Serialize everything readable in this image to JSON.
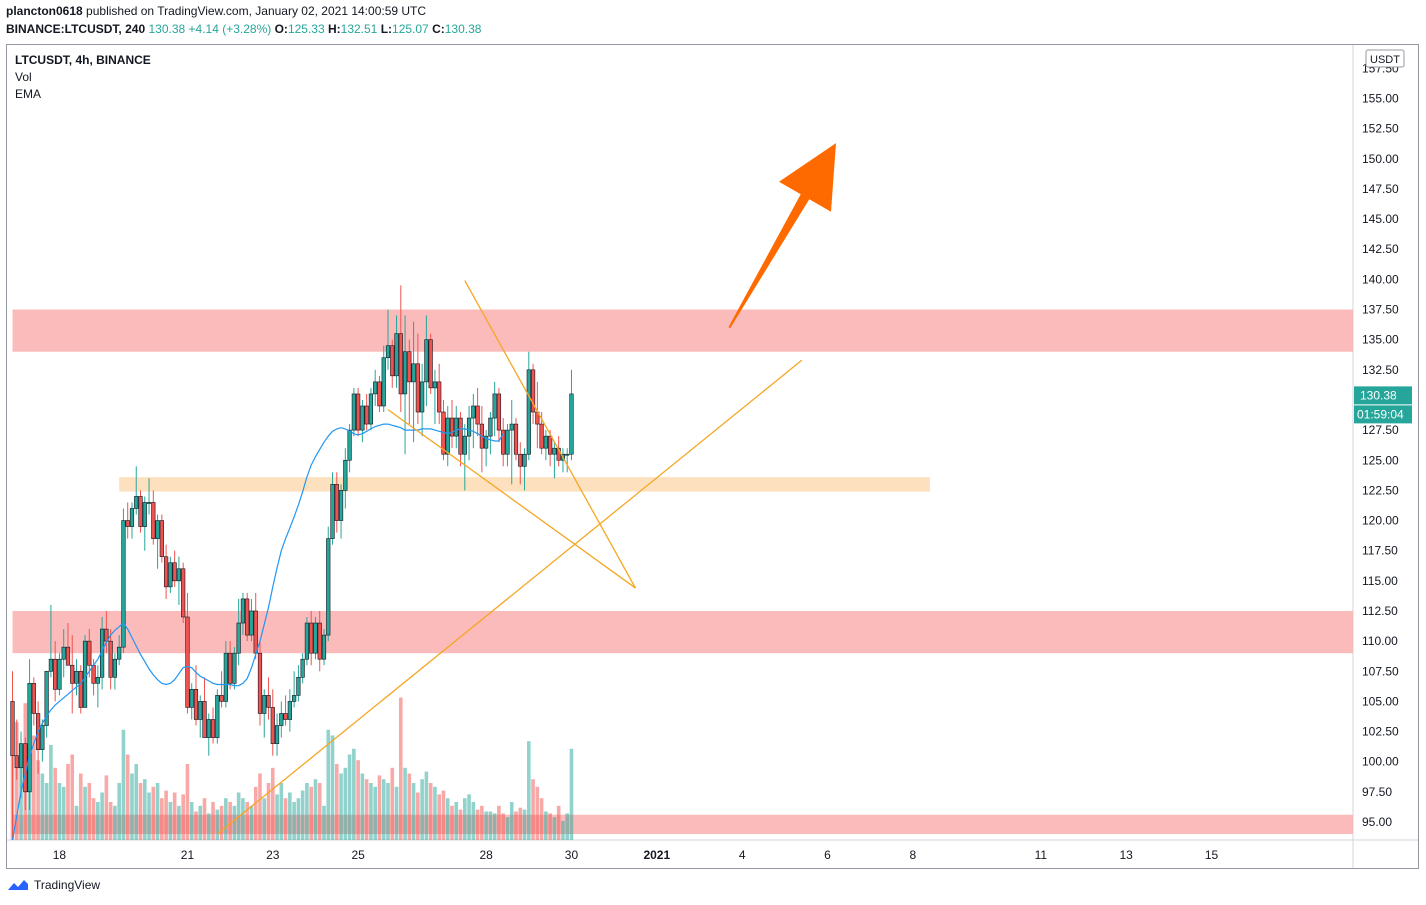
{
  "header": {
    "author": "plancton0618",
    "published": "published on TradingView.com, January 02, 2021 14:00:59 UTC",
    "symbol": "BINANCE:LTCUSDT, 240",
    "last": "130.38",
    "change": "+4.14 (+3.28%)",
    "o_label": "O:",
    "o_value": "125.33",
    "h_label": "H:",
    "h_value": "132.51",
    "l_label": "L:",
    "l_value": "125.07",
    "c_label": "C:",
    "c_value": "130.38"
  },
  "legend": {
    "title": "LTCUSDT, 4h, BINANCE",
    "vol": "Vol",
    "ema": "EMA"
  },
  "price_axis": {
    "currency": "USDT",
    "last_price": "130.38",
    "countdown": "01:59:04"
  },
  "footer": {
    "brand": "TradingView"
  },
  "colors": {
    "up": "#26a69a",
    "down": "#ef5350",
    "ema": "#2196f3",
    "resistance_zone": "#fbb4b4",
    "support_zone": "#fddcb4",
    "trendline": "#f5a623",
    "arrow": "#ff6a00"
  },
  "chart_data": {
    "type": "candlestick",
    "ylim": [
      93.5,
      158.5
    ],
    "yticks": [
      "95.00",
      "97.50",
      "100.00",
      "102.50",
      "105.00",
      "107.50",
      "110.00",
      "112.50",
      "115.00",
      "117.50",
      "120.00",
      "122.50",
      "125.00",
      "127.50",
      "130.00",
      "132.50",
      "135.00",
      "137.50",
      "140.00",
      "142.50",
      "145.00",
      "147.50",
      "150.00",
      "152.50",
      "155.00",
      "157.50"
    ],
    "xticks": [
      {
        "label": "18",
        "bar": 11
      },
      {
        "label": "21",
        "bar": 41
      },
      {
        "label": "23",
        "bar": 61
      },
      {
        "label": "25",
        "bar": 81
      },
      {
        "label": "28",
        "bar": 111
      },
      {
        "label": "30",
        "bar": 131
      },
      {
        "label": "2021",
        "bar": 151,
        "bold": true
      },
      {
        "label": "4",
        "bar": 171
      },
      {
        "label": "6",
        "bar": 191
      },
      {
        "label": "8",
        "bar": 211
      },
      {
        "label": "11",
        "bar": 241
      },
      {
        "label": "13",
        "bar": 261
      },
      {
        "label": "15",
        "bar": 281
      }
    ],
    "zones": [
      {
        "kind": "resistance",
        "from": 134.0,
        "to": 137.5,
        "start_bar": 0,
        "end_bar": 400
      },
      {
        "kind": "support",
        "from": 122.4,
        "to": 123.6,
        "start_bar": 25,
        "end_bar": 215
      },
      {
        "kind": "resistance",
        "from": 109.0,
        "to": 112.5,
        "start_bar": 0,
        "end_bar": 400
      },
      {
        "kind": "resistance",
        "from": 94.0,
        "to": 95.6,
        "start_bar": 0,
        "end_bar": 400
      }
    ],
    "trendlines": [
      {
        "from": {
          "bar": 48,
          "price": 94.0
        },
        "to": {
          "bar": 185,
          "price": 133.3
        }
      },
      {
        "from": {
          "bar": 106,
          "price": 139.9
        },
        "to": {
          "bar": 146,
          "price": 114.4
        }
      },
      {
        "from": {
          "bar": 88,
          "price": 129.2
        },
        "to": {
          "bar": 146,
          "price": 114.4
        }
      }
    ],
    "arrow": {
      "from": {
        "bar": 168,
        "price": 136.0
      },
      "to": {
        "bar": 193,
        "price": 151.3
      }
    },
    "volume_max": 100,
    "candles": [
      [
        105.0,
        107.5,
        88.0,
        100.5,
        55
      ],
      [
        100.5,
        103.5,
        98.5,
        99.5,
        62
      ],
      [
        99.5,
        102.5,
        97.0,
        101.5,
        48
      ],
      [
        101.5,
        102.0,
        96.0,
        97.5,
        72
      ],
      [
        97.5,
        108.5,
        96.0,
        106.5,
        40
      ],
      [
        106.5,
        107.0,
        103.0,
        104.0,
        55
      ],
      [
        104.0,
        105.0,
        99.0,
        101.0,
        42
      ],
      [
        101.0,
        103.5,
        100.0,
        103.0,
        35
      ],
      [
        103.0,
        107.5,
        102.0,
        107.5,
        30
      ],
      [
        107.5,
        113.0,
        107.0,
        108.5,
        50
      ],
      [
        108.5,
        110.0,
        105.0,
        106.0,
        38
      ],
      [
        106.0,
        109.0,
        105.5,
        108.5,
        30
      ],
      [
        108.5,
        111.0,
        107.0,
        109.5,
        28
      ],
      [
        109.5,
        111.5,
        108.0,
        108.0,
        40
      ],
      [
        108.0,
        110.5,
        104.0,
        106.5,
        45
      ],
      [
        106.5,
        108.5,
        105.5,
        107.5,
        18
      ],
      [
        107.5,
        108.0,
        104.0,
        104.5,
        35
      ],
      [
        104.5,
        110.5,
        104.5,
        110.0,
        28
      ],
      [
        110.0,
        111.0,
        107.0,
        108.0,
        30
      ],
      [
        108.0,
        108.5,
        105.5,
        106.5,
        22
      ],
      [
        106.5,
        108.0,
        104.5,
        107.0,
        20
      ],
      [
        107.0,
        112.0,
        106.0,
        111.0,
        25
      ],
      [
        111.0,
        112.5,
        109.0,
        110.0,
        34
      ],
      [
        110.0,
        111.0,
        106.0,
        107.0,
        20
      ],
      [
        107.0,
        109.0,
        106.0,
        108.5,
        18
      ],
      [
        108.5,
        110.5,
        108.0,
        109.5,
        30
      ],
      [
        109.5,
        121.0,
        109.0,
        120.0,
        58
      ],
      [
        120.0,
        121.5,
        118.5,
        119.5,
        45
      ],
      [
        119.5,
        121.5,
        118.5,
        121.0,
        35
      ],
      [
        121.0,
        124.5,
        120.5,
        122.0,
        40
      ],
      [
        122.0,
        122.5,
        119.0,
        119.5,
        30
      ],
      [
        119.5,
        122.0,
        117.5,
        121.5,
        32
      ],
      [
        121.5,
        123.5,
        120.5,
        121.5,
        25
      ],
      [
        121.5,
        122.5,
        118.0,
        118.5,
        28
      ],
      [
        118.5,
        120.5,
        116.0,
        120.0,
        30
      ],
      [
        120.0,
        120.5,
        116.5,
        117.0,
        22
      ],
      [
        117.0,
        118.0,
        113.5,
        114.5,
        26
      ],
      [
        114.5,
        117.0,
        114.0,
        116.5,
        20
      ],
      [
        116.5,
        117.5,
        114.5,
        115.0,
        25
      ],
      [
        115.0,
        117.0,
        113.0,
        116.0,
        18
      ],
      [
        116.0,
        116.5,
        111.5,
        112.0,
        24
      ],
      [
        112.0,
        114.0,
        104.0,
        104.5,
        40
      ],
      [
        104.5,
        106.5,
        103.5,
        106.0,
        20
      ],
      [
        106.0,
        108.0,
        103.0,
        103.5,
        15
      ],
      [
        103.5,
        105.5,
        102.0,
        105.0,
        18
      ],
      [
        105.0,
        107.0,
        102.0,
        102.0,
        22
      ],
      [
        102.0,
        104.0,
        100.5,
        103.5,
        14
      ],
      [
        103.5,
        104.5,
        101.5,
        102.0,
        20
      ],
      [
        102.0,
        106.0,
        101.5,
        105.5,
        16
      ],
      [
        105.5,
        107.5,
        104.5,
        105.0,
        18
      ],
      [
        105.0,
        110.0,
        104.5,
        109.0,
        22
      ],
      [
        109.0,
        110.0,
        106.0,
        106.5,
        20
      ],
      [
        106.5,
        109.5,
        106.0,
        109.0,
        18
      ],
      [
        109.0,
        113.5,
        108.0,
        111.5,
        25
      ],
      [
        111.5,
        114.0,
        110.5,
        113.5,
        22
      ],
      [
        113.5,
        114.0,
        110.0,
        110.5,
        20
      ],
      [
        110.5,
        113.5,
        110.0,
        112.5,
        18
      ],
      [
        112.5,
        114.0,
        108.5,
        109.0,
        28
      ],
      [
        109.0,
        110.0,
        103.0,
        104.0,
        35
      ],
      [
        104.0,
        106.0,
        102.0,
        105.5,
        22
      ],
      [
        105.5,
        107.0,
        103.5,
        104.5,
        30
      ],
      [
        104.5,
        106.0,
        100.5,
        101.5,
        38
      ],
      [
        101.5,
        104.0,
        100.5,
        103.0,
        24
      ],
      [
        103.0,
        105.0,
        102.0,
        104.0,
        30
      ],
      [
        104.0,
        105.5,
        103.0,
        103.5,
        22
      ],
      [
        103.5,
        106.0,
        102.5,
        105.0,
        25
      ],
      [
        105.0,
        107.5,
        104.5,
        105.5,
        20
      ],
      [
        105.5,
        108.0,
        105.0,
        107.0,
        22
      ],
      [
        107.0,
        109.0,
        106.5,
        108.5,
        26
      ],
      [
        108.5,
        112.0,
        108.0,
        111.5,
        30
      ],
      [
        111.5,
        112.5,
        108.0,
        109.0,
        28
      ],
      [
        109.0,
        112.0,
        108.5,
        111.5,
        32
      ],
      [
        111.5,
        112.5,
        107.5,
        108.5,
        30
      ],
      [
        108.5,
        111.0,
        108.0,
        110.5,
        18
      ],
      [
        110.5,
        119.5,
        110.0,
        118.5,
        58
      ],
      [
        118.5,
        124.0,
        118.0,
        123.0,
        55
      ],
      [
        123.0,
        124.0,
        119.0,
        120.0,
        40
      ],
      [
        120.0,
        123.0,
        118.5,
        122.5,
        35
      ],
      [
        122.5,
        126.0,
        121.0,
        125.0,
        38
      ],
      [
        125.0,
        128.0,
        124.0,
        127.5,
        45
      ],
      [
        127.5,
        131.0,
        127.0,
        130.5,
        48
      ],
      [
        130.5,
        131.0,
        127.0,
        127.5,
        42
      ],
      [
        127.5,
        130.0,
        126.5,
        129.5,
        35
      ],
      [
        129.5,
        130.5,
        127.5,
        128.0,
        32
      ],
      [
        128.0,
        131.0,
        127.5,
        130.5,
        30
      ],
      [
        130.5,
        132.5,
        129.5,
        131.5,
        28
      ],
      [
        131.5,
        132.0,
        129.0,
        129.5,
        34
      ],
      [
        129.5,
        134.5,
        129.0,
        133.5,
        32
      ],
      [
        133.5,
        137.5,
        132.5,
        134.5,
        30
      ],
      [
        134.5,
        135.0,
        131.0,
        132.0,
        38
      ],
      [
        132.0,
        137.0,
        131.0,
        135.5,
        28
      ],
      [
        135.5,
        139.5,
        129.0,
        130.5,
        75
      ],
      [
        130.5,
        137.0,
        125.5,
        134.0,
        38
      ],
      [
        134.0,
        135.0,
        128.0,
        131.5,
        35
      ],
      [
        131.5,
        136.5,
        126.5,
        133.0,
        30
      ],
      [
        133.0,
        135.5,
        128.0,
        129.0,
        25
      ],
      [
        129.0,
        133.0,
        127.0,
        131.5,
        32
      ],
      [
        131.5,
        137.0,
        129.5,
        135.0,
        36
      ],
      [
        135.0,
        135.5,
        130.5,
        131.0,
        30
      ],
      [
        131.0,
        132.5,
        128.0,
        131.5,
        28
      ],
      [
        131.5,
        133.0,
        128.0,
        129.0,
        24
      ],
      [
        129.0,
        130.0,
        125.0,
        125.5,
        26
      ],
      [
        125.5,
        129.5,
        124.5,
        128.5,
        22
      ],
      [
        128.5,
        130.0,
        126.0,
        127.0,
        18
      ],
      [
        127.0,
        129.5,
        126.0,
        128.5,
        20
      ],
      [
        128.5,
        129.0,
        124.5,
        125.5,
        16
      ],
      [
        125.5,
        128.0,
        122.5,
        127.0,
        22
      ],
      [
        127.0,
        129.5,
        125.0,
        128.5,
        24
      ],
      [
        128.5,
        130.5,
        126.0,
        129.5,
        20
      ],
      [
        129.5,
        131.0,
        127.0,
        128.0,
        16
      ],
      [
        128.0,
        129.5,
        124.0,
        126.0,
        18
      ],
      [
        126.0,
        127.5,
        124.5,
        127.0,
        15
      ],
      [
        127.0,
        129.0,
        125.5,
        128.5,
        15
      ],
      [
        128.5,
        131.5,
        127.0,
        130.5,
        14
      ],
      [
        130.5,
        131.0,
        126.5,
        127.5,
        18
      ],
      [
        127.5,
        128.5,
        124.5,
        125.5,
        14
      ],
      [
        125.5,
        128.0,
        124.5,
        127.5,
        12
      ],
      [
        127.5,
        130.0,
        123.0,
        128.0,
        20
      ],
      [
        128.0,
        128.5,
        125.0,
        125.5,
        15
      ],
      [
        125.5,
        126.5,
        123.0,
        124.5,
        17
      ],
      [
        124.5,
        126.0,
        122.5,
        125.5,
        16
      ],
      [
        125.5,
        134.0,
        125.0,
        132.5,
        52
      ],
      [
        132.5,
        133.0,
        128.0,
        129.0,
        32
      ],
      [
        129.0,
        131.5,
        126.0,
        128.0,
        28
      ],
      [
        128.0,
        129.0,
        125.5,
        126.0,
        22
      ],
      [
        126.0,
        127.5,
        125.0,
        127.0,
        15
      ],
      [
        127.0,
        127.5,
        124.5,
        125.5,
        14
      ],
      [
        125.5,
        126.5,
        123.5,
        126.0,
        12
      ],
      [
        126.0,
        127.0,
        124.5,
        125.0,
        18
      ],
      [
        125.0,
        126.0,
        124.0,
        125.5,
        10
      ],
      [
        125.5,
        126.0,
        124.0,
        125.5,
        14
      ],
      [
        125.5,
        132.5,
        125.0,
        130.5,
        48
      ]
    ],
    "ema": [
      93.5,
      95.5,
      97.5,
      99.0,
      100.5,
      101.5,
      102.5,
      103.2,
      103.8,
      104.3,
      104.7,
      105.0,
      105.3,
      105.6,
      105.9,
      106.2,
      106.5,
      107.0,
      107.5,
      108.0,
      108.5,
      109.2,
      109.9,
      110.5,
      110.9,
      111.2,
      111.5,
      111.0,
      110.3,
      109.6,
      108.9,
      108.3,
      107.7,
      107.2,
      106.8,
      106.5,
      106.4,
      106.5,
      106.8,
      107.3,
      107.8,
      107.9,
      107.8,
      107.4,
      107.1,
      106.9,
      106.7,
      106.5,
      106.4,
      106.4,
      106.4,
      106.4,
      106.3,
      106.3,
      106.5,
      106.9,
      107.8,
      108.9,
      110.0,
      111.4,
      112.8,
      114.5,
      116.1,
      117.5,
      118.5,
      119.4,
      120.3,
      121.3,
      122.4,
      123.6,
      124.6,
      125.3,
      125.9,
      126.5,
      127.0,
      127.4,
      127.6,
      127.7,
      127.6,
      127.4,
      127.2,
      127.1,
      127.2,
      127.4,
      127.6,
      127.8,
      127.9,
      128.0,
      128.0,
      127.9,
      127.8,
      127.7,
      127.5,
      127.5,
      127.5,
      127.5,
      127.6,
      127.6,
      127.6,
      127.5,
      127.4,
      127.3,
      127.2,
      127.3,
      127.5,
      127.6,
      127.6,
      127.5,
      127.4,
      127.2,
      127.0,
      126.8,
      126.7,
      126.6,
      126.6,
      127.2
    ]
  }
}
